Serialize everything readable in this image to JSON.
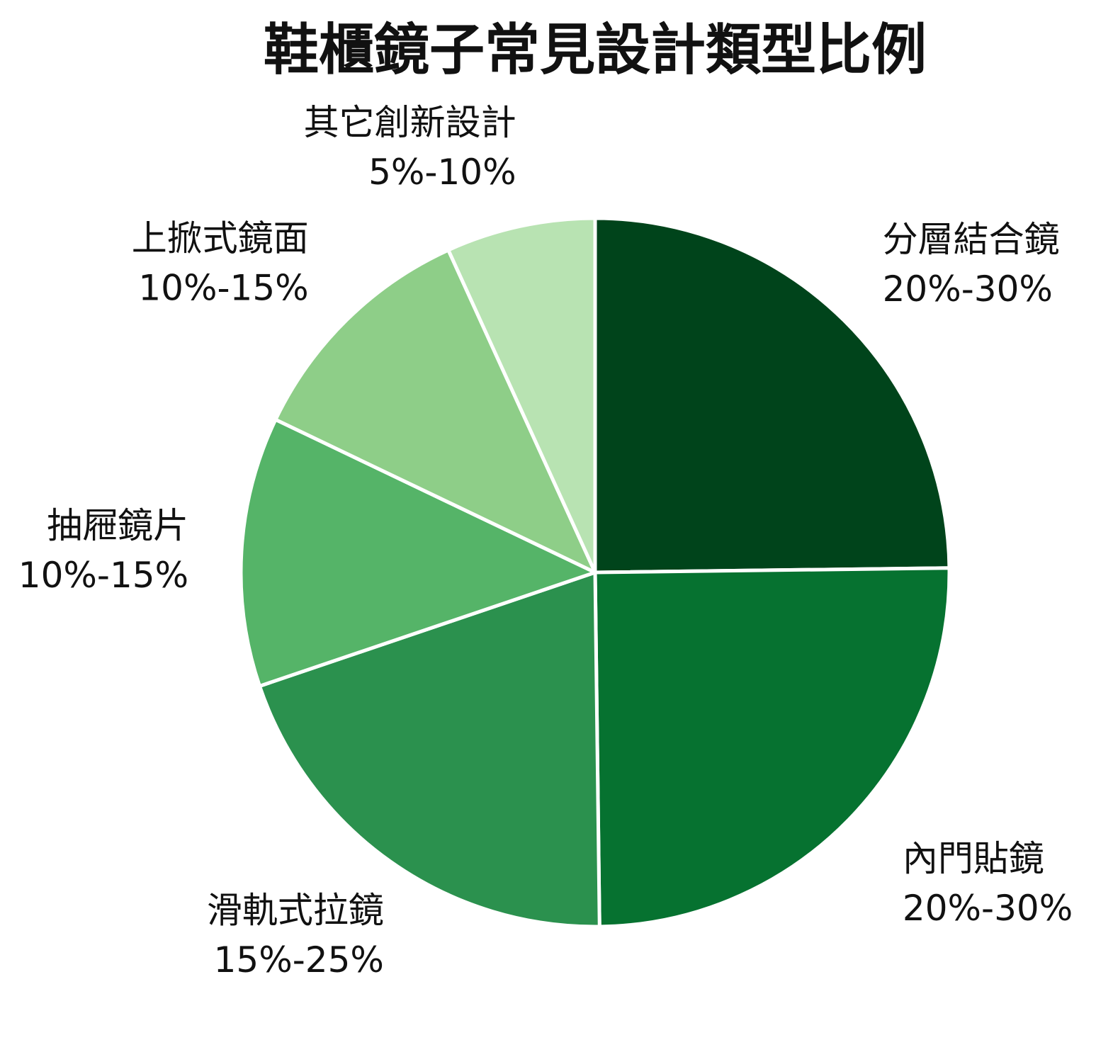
{
  "chart_data": {
    "type": "pie",
    "title": "鞋櫃鏡子常見設計類型比例",
    "start_angle_deg": 0,
    "direction": "clockwise",
    "slices": [
      {
        "name": "分層結合鏡",
        "range": "20%-30%",
        "value": 24.8,
        "color": "#00441b"
      },
      {
        "name": "內門貼鏡",
        "range": "20%-30%",
        "value": 25.0,
        "color": "#067230"
      },
      {
        "name": "滑軌式拉鏡",
        "range": "15%-25%",
        "value": 20.0,
        "color": "#2b914e"
      },
      {
        "name": "抽屜鏡片",
        "range": "10%-15%",
        "value": 12.3,
        "color": "#55b468"
      },
      {
        "name": "上掀式鏡面",
        "range": "10%-15%",
        "value": 11.1,
        "color": "#8ece88"
      },
      {
        "name": "其它創新設計",
        "range": "5%-10%",
        "value": 6.8,
        "color": "#b8e3b2"
      }
    ]
  }
}
